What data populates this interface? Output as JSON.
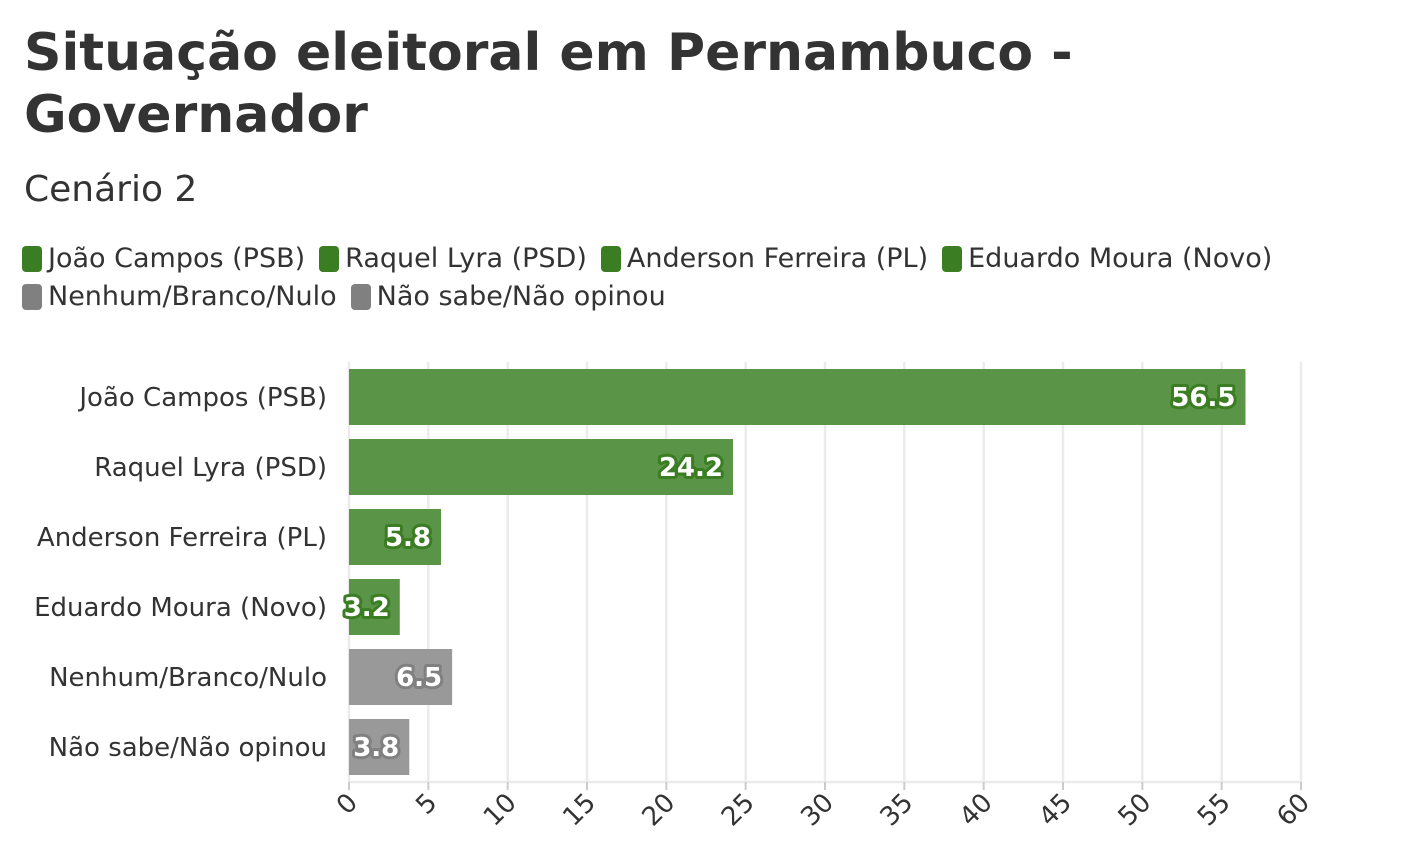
{
  "title": "Situação eleitoral em Pernambuco - Governador",
  "subtitle": "Cenário 2",
  "legend": [
    {
      "label": "João Campos (PSB)",
      "color": "#3b7d23"
    },
    {
      "label": "Raquel Lyra (PSD)",
      "color": "#3b7d23"
    },
    {
      "label": "Anderson Ferreira (PL)",
      "color": "#3b7d23"
    },
    {
      "label": "Eduardo Moura (Novo)",
      "color": "#3b7d23"
    },
    {
      "label": "Nenhum/Branco/Nulo",
      "color": "#808080"
    },
    {
      "label": "Não sabe/Não opinou",
      "color": "#808080"
    }
  ],
  "chart_data": {
    "type": "bar",
    "orientation": "horizontal",
    "title": "Situação eleitoral em Pernambuco - Governador",
    "subtitle": "Cenário 2",
    "categories": [
      "João Campos (PSB)",
      "Raquel Lyra (PSD)",
      "Anderson Ferreira (PL)",
      "Eduardo Moura (Novo)",
      "Nenhum/Branco/Nulo",
      "Não sabe/Não opinou"
    ],
    "values": [
      56.5,
      24.2,
      5.8,
      3.2,
      6.5,
      3.8
    ],
    "value_labels": [
      "56.5",
      "24.2",
      "5.8",
      "3.2",
      "6.5",
      "3.8"
    ],
    "colors": [
      "#5a9447",
      "#5a9447",
      "#5a9447",
      "#5a9447",
      "#999999",
      "#999999"
    ],
    "label_outline_colors": [
      "#3b7d23",
      "#3b7d23",
      "#3b7d23",
      "#3b7d23",
      "#808080",
      "#808080"
    ],
    "xlim": [
      0,
      60
    ],
    "x_ticks": [
      0,
      5,
      10,
      15,
      20,
      25,
      30,
      35,
      40,
      45,
      50,
      55,
      60
    ],
    "xlabel": "",
    "ylabel": "",
    "grid": true,
    "legend_position": "top"
  }
}
